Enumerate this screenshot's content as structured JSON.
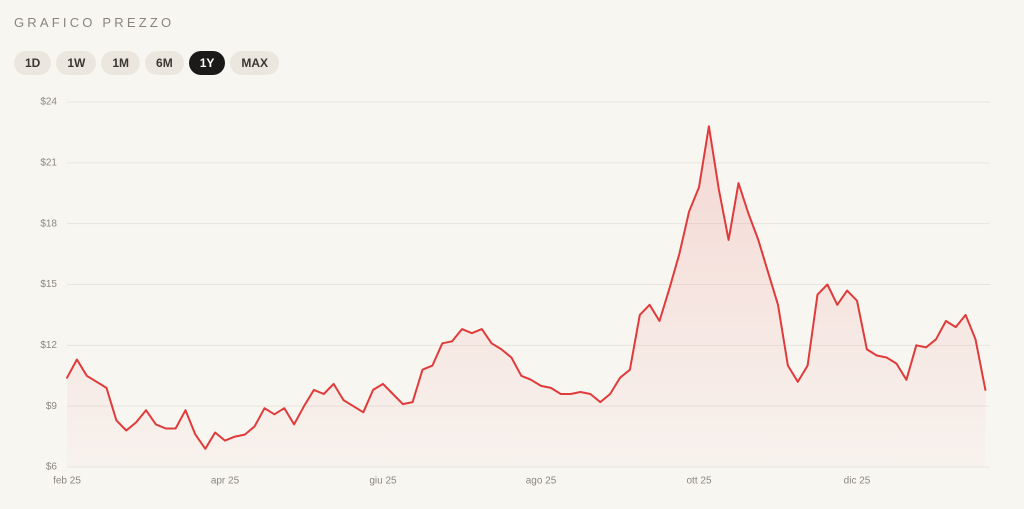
{
  "chart_data": {
    "type": "line",
    "title": "GRAFICO PREZZO",
    "range_buttons": [
      "1D",
      "1W",
      "1M",
      "6M",
      "1Y",
      "MAX"
    ],
    "active_range": 4,
    "categories": [
      "feb 25",
      null,
      null,
      null,
      null,
      null,
      null,
      null,
      null,
      null,
      null,
      null,
      null,
      null,
      null,
      null,
      "apr 25",
      null,
      null,
      null,
      null,
      null,
      null,
      null,
      null,
      null,
      null,
      null,
      null,
      null,
      null,
      null,
      "giu 25",
      null,
      null,
      null,
      null,
      null,
      null,
      null,
      null,
      null,
      null,
      null,
      null,
      null,
      null,
      null,
      "ago 25",
      null,
      null,
      null,
      null,
      null,
      null,
      null,
      null,
      null,
      null,
      null,
      null,
      null,
      null,
      null,
      "ott 25",
      null,
      null,
      null,
      null,
      null,
      null,
      null,
      null,
      null,
      null,
      null,
      null,
      null,
      null,
      null,
      "dic 25",
      null,
      null,
      null,
      null,
      null,
      null,
      null,
      null,
      null,
      null,
      null,
      null,
      null
    ],
    "values": [
      10.4,
      11.3,
      10.5,
      10.2,
      9.9,
      8.3,
      7.8,
      8.2,
      8.8,
      8.1,
      7.9,
      7.9,
      8.8,
      7.6,
      6.9,
      7.7,
      7.3,
      7.5,
      7.6,
      8.0,
      8.9,
      8.6,
      8.9,
      8.1,
      9.0,
      9.8,
      9.6,
      10.1,
      9.3,
      9.0,
      8.7,
      9.8,
      10.1,
      9.6,
      9.1,
      9.2,
      10.8,
      11.0,
      12.1,
      12.2,
      12.8,
      12.6,
      12.8,
      12.1,
      11.8,
      11.4,
      10.5,
      10.3,
      10.0,
      9.9,
      9.6,
      9.6,
      9.7,
      9.6,
      9.2,
      9.6,
      10.4,
      10.8,
      13.5,
      14.0,
      13.2,
      14.8,
      16.5,
      18.6,
      19.8,
      22.8,
      19.7,
      17.2,
      20.0,
      18.5,
      17.2,
      15.6,
      14.0,
      11.0,
      10.2,
      11.0,
      14.5,
      15.0,
      14.0,
      14.7,
      14.2,
      11.8,
      11.5,
      11.4,
      11.1,
      10.3,
      12.0,
      11.9,
      12.3,
      13.2,
      12.9,
      13.5,
      12.3,
      9.8
    ],
    "color": "#e03b3b",
    "ylim": [
      6,
      24
    ],
    "yticks": [
      {
        "value": 6,
        "label": "$6"
      },
      {
        "value": 9,
        "label": "$9"
      },
      {
        "value": 12,
        "label": "$12"
      },
      {
        "value": 15,
        "label": "$15"
      },
      {
        "value": 18,
        "label": "$18"
      },
      {
        "value": 21,
        "label": "$21"
      },
      {
        "value": 24,
        "label": "$24"
      }
    ],
    "grid": true
  }
}
